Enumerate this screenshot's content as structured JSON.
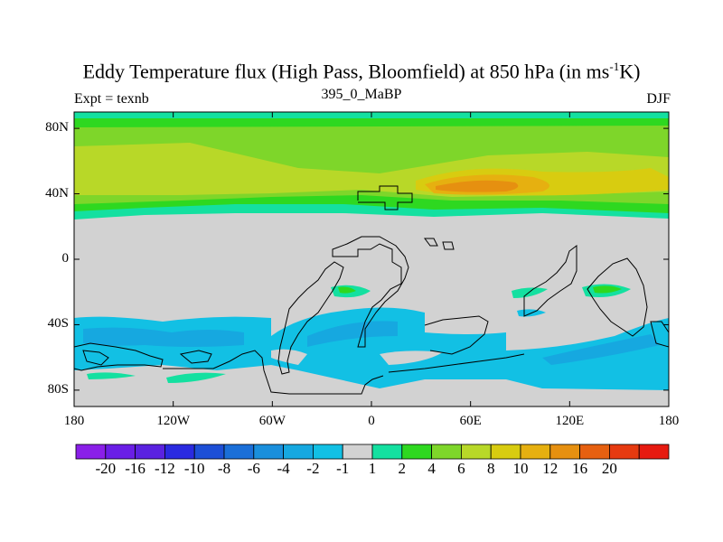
{
  "title": {
    "text_main": "Eddy Temperature flux (High Pass, Bloomfield) at 850 hPa (in ms",
    "superscript": "-1",
    "text_end": "K)"
  },
  "subtitle_left": "Expt = texnb",
  "subtitle_center": "395_0_MaBP",
  "subtitle_right": "DJF",
  "map": {
    "lat_ticks": [
      "80N",
      "40N",
      "0",
      "40S",
      "80S"
    ],
    "lon_ticks": [
      "180",
      "120W",
      "60W",
      "0",
      "60E",
      "120E",
      "180"
    ],
    "lat_range": [
      -90,
      90
    ],
    "lon_range": [
      -180,
      180
    ],
    "land_color": "#d2d2d2",
    "coastline_color": "#000000"
  },
  "colorbar": {
    "colors": [
      "#8a1fe8",
      "#6a1ee6",
      "#5a22e0",
      "#2a2ae0",
      "#1d4fd6",
      "#1b6fd8",
      "#1a8fdc",
      "#16a8e0",
      "#12c0e4",
      "#d2d2d2",
      "#14e0a0",
      "#2ed820",
      "#7ed62a",
      "#b8d828",
      "#d8cc10",
      "#e6b010",
      "#e69010",
      "#e66010",
      "#e63a10",
      "#e61a10"
    ],
    "labels": [
      "-20",
      "-16",
      "-12",
      "-10",
      "-8",
      "-6",
      "-4",
      "-2",
      "-1",
      "1",
      "2",
      "4",
      "6",
      "8",
      "10",
      "12",
      "16",
      "20"
    ]
  }
}
